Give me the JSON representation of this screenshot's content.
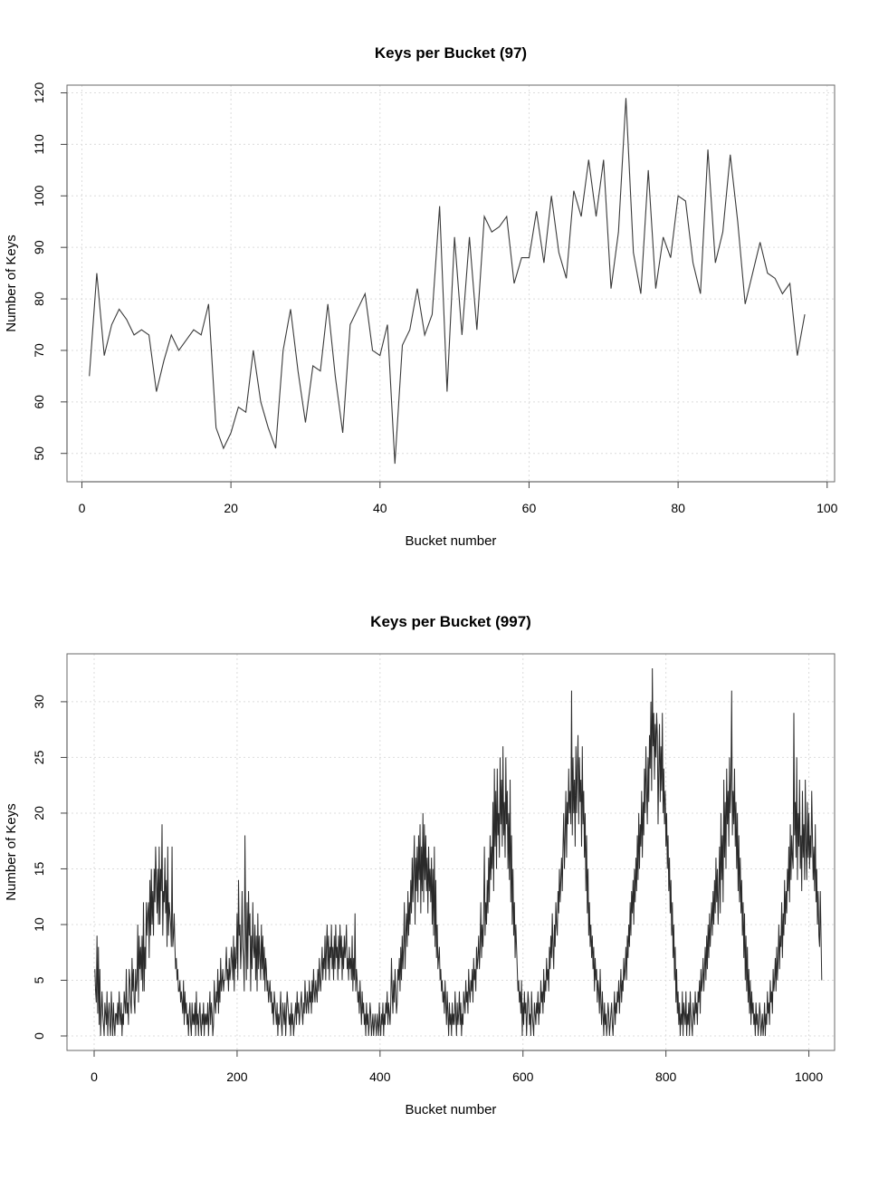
{
  "chart_data": [
    {
      "type": "line",
      "title": "Keys per Bucket (97)",
      "xlabel": "Bucket number",
      "ylabel": "Number of Keys",
      "xlim": [
        -2,
        101
      ],
      "ylim": [
        44.5,
        121.5
      ],
      "xticks": [
        0,
        20,
        40,
        60,
        80,
        100
      ],
      "yticks": [
        50,
        60,
        70,
        80,
        90,
        100,
        110,
        120
      ],
      "grid": true,
      "x_start": 1,
      "series": [
        {
          "name": "Keys",
          "values": [
            65,
            85,
            69,
            75,
            78,
            76,
            73,
            74,
            73,
            62,
            68,
            73,
            70,
            72,
            74,
            73,
            79,
            55,
            51,
            54,
            59,
            58,
            70,
            60,
            55,
            51,
            70,
            78,
            66,
            56,
            67,
            66,
            79,
            65,
            54,
            75,
            78,
            81,
            70,
            69,
            75,
            48,
            71,
            74,
            82,
            73,
            77,
            98,
            62,
            92,
            73,
            92,
            74,
            96,
            93,
            94,
            96,
            83,
            88,
            88,
            97,
            87,
            100,
            89,
            84,
            101,
            96,
            107,
            96,
            107,
            82,
            93,
            119,
            89,
            81,
            105,
            82,
            92,
            88,
            100,
            99,
            87,
            81,
            109,
            87,
            93,
            108,
            95,
            79,
            85,
            91,
            85,
            84,
            81,
            83,
            69,
            77
          ]
        }
      ]
    },
    {
      "type": "line",
      "title": "Keys per Bucket (997)",
      "xlabel": "Bucket number",
      "ylabel": "Number of Keys",
      "xlim": [
        -38,
        1036
      ],
      "ylim": [
        -1.3,
        34.3
      ],
      "xticks": [
        0,
        200,
        400,
        600,
        800,
        1000
      ],
      "yticks": [
        0,
        5,
        10,
        15,
        20,
        25,
        30
      ],
      "grid": true,
      "x_start": 1,
      "series": [
        {
          "name": "Keys",
          "values": [
            6,
            4,
            3,
            9,
            2,
            8,
            1,
            6,
            0,
            2,
            4,
            2,
            1,
            0,
            3,
            2,
            1,
            4,
            0,
            2,
            3,
            1,
            0,
            4,
            2,
            0,
            3,
            1,
            0,
            2,
            2,
            1,
            3,
            1,
            4,
            2,
            1,
            3,
            0,
            2,
            1,
            4,
            3,
            2,
            6,
            2,
            3,
            1,
            6,
            5,
            3,
            2,
            7,
            4,
            6,
            3,
            2,
            6,
            4,
            5,
            10,
            3,
            9,
            6,
            8,
            5,
            9,
            4,
            12,
            4,
            8,
            6,
            12,
            9,
            11,
            12,
            7,
            14,
            9,
            15,
            10,
            13,
            9,
            15,
            12,
            17,
            14,
            11,
            15,
            10,
            17,
            10,
            15,
            13,
            19,
            9,
            13,
            12,
            16,
            11,
            14,
            8,
            17,
            9,
            12,
            11,
            10,
            8,
            17,
            8,
            9,
            11,
            8,
            6,
            7,
            5,
            6,
            4,
            4,
            5,
            3,
            4,
            3,
            2,
            5,
            1,
            4,
            2,
            3,
            1,
            2,
            0,
            2,
            3,
            1,
            0,
            3,
            1,
            2,
            1,
            3,
            0,
            4,
            1,
            2,
            0,
            2,
            3,
            1,
            0,
            2,
            1,
            3,
            0,
            2,
            1,
            2,
            1,
            3,
            0,
            2,
            4,
            1,
            3,
            2,
            0,
            1,
            5,
            3,
            2,
            4,
            3,
            6,
            2,
            5,
            3,
            7,
            4,
            5,
            6,
            4,
            5,
            5,
            6,
            8,
            5,
            6,
            4,
            7,
            5,
            6,
            8,
            7,
            5,
            9,
            4,
            8,
            6,
            7,
            11,
            5,
            14,
            9,
            10,
            6,
            8,
            13,
            8,
            7,
            4,
            18,
            10,
            5,
            12,
            6,
            13,
            9,
            11,
            4,
            9,
            6,
            12,
            8,
            7,
            10,
            5,
            9,
            4,
            11,
            6,
            9,
            7,
            5,
            10,
            6,
            9,
            5,
            8,
            4,
            7,
            6,
            4,
            5,
            3,
            4,
            5,
            3,
            4,
            2,
            3,
            1,
            4,
            3,
            2,
            1,
            3,
            0,
            2,
            1,
            2,
            4,
            1,
            0,
            3,
            2,
            1,
            3,
            0,
            2,
            4,
            3,
            2,
            1,
            2,
            0,
            3,
            1,
            2,
            0,
            1,
            2,
            3,
            1,
            4,
            2,
            3,
            1,
            2,
            3,
            4,
            2,
            1,
            3,
            2,
            5,
            3,
            2,
            4,
            3,
            2,
            5,
            3,
            4,
            2,
            5,
            3,
            6,
            4,
            3,
            5,
            4,
            3,
            6,
            4,
            7,
            5,
            4,
            6,
            8,
            5,
            7,
            6,
            9,
            5,
            8,
            10,
            6,
            9,
            5,
            8,
            7,
            10,
            6,
            8,
            5,
            9,
            6,
            10,
            7,
            8,
            5,
            9,
            6,
            10,
            7,
            9,
            5,
            8,
            6,
            9,
            7,
            8,
            10,
            6,
            7,
            5,
            8,
            6,
            7,
            5,
            9,
            4,
            7,
            5,
            11,
            4,
            6,
            5,
            3,
            4,
            2,
            5,
            3,
            1,
            4,
            2,
            3,
            1,
            2,
            0,
            3,
            1,
            2,
            0,
            1,
            3,
            2,
            0,
            1,
            2,
            0,
            1,
            2,
            1,
            0,
            2,
            1,
            0,
            3,
            1,
            0,
            2,
            1,
            3,
            0,
            2,
            1,
            3,
            2,
            4,
            1,
            3,
            2,
            1,
            3,
            7,
            4,
            2,
            5,
            3,
            6,
            4,
            2,
            3,
            6,
            5,
            7,
            4,
            8,
            5,
            9,
            6,
            8,
            12,
            6,
            9,
            11,
            8,
            13,
            9,
            12,
            10,
            14,
            11,
            16,
            12,
            15,
            18,
            10,
            16,
            13,
            17,
            12,
            18,
            14,
            19,
            11,
            17,
            13,
            20,
            12,
            19,
            14,
            18,
            13,
            16,
            11,
            17,
            13,
            15,
            12,
            16,
            10,
            15,
            9,
            17,
            8,
            14,
            7,
            10,
            6,
            7,
            8,
            5,
            6,
            4,
            5,
            3,
            4,
            2,
            5,
            3,
            1,
            4,
            2,
            0,
            3,
            1,
            2,
            0,
            3,
            1,
            2,
            1,
            4,
            2,
            0,
            3,
            1,
            2,
            4,
            1,
            3,
            0,
            2,
            1,
            4,
            3,
            2,
            5,
            3,
            4,
            2,
            6,
            4,
            3,
            5,
            4,
            6,
            3,
            7,
            5,
            6,
            4,
            8,
            6,
            7,
            9,
            6,
            8,
            12,
            7,
            10,
            8,
            11,
            17,
            9,
            12,
            10,
            14,
            11,
            16,
            12,
            18,
            14,
            17,
            15,
            21,
            13,
            24,
            17,
            22,
            15,
            24,
            18,
            20,
            16,
            25,
            19,
            23,
            17,
            26,
            18,
            21,
            16,
            25,
            19,
            22,
            15,
            20,
            14,
            23,
            12,
            18,
            10,
            15,
            9,
            12,
            7,
            10,
            8,
            6,
            4,
            5,
            3,
            4,
            2,
            5,
            0,
            3,
            1,
            4,
            2,
            3,
            0,
            2,
            4,
            3,
            1,
            2,
            0,
            4,
            2,
            1,
            0,
            3,
            2,
            1,
            3,
            2,
            4,
            1,
            3,
            2,
            5,
            3,
            4,
            2,
            6,
            3,
            5,
            4,
            7,
            5,
            6,
            4,
            8,
            6,
            9,
            7,
            11,
            8,
            6,
            10,
            8,
            12,
            10,
            9,
            13,
            11,
            15,
            12,
            14,
            16,
            13,
            17,
            20,
            15,
            18,
            22,
            16,
            21,
            19,
            24,
            20,
            22,
            19,
            31,
            18,
            25,
            20,
            23,
            17,
            26,
            20,
            24,
            27,
            19,
            25,
            21,
            23,
            17,
            26,
            19,
            22,
            16,
            20,
            13,
            18,
            11,
            15,
            9,
            12,
            8,
            10,
            7,
            9,
            6,
            8,
            4,
            7,
            5,
            6,
            3,
            5,
            4,
            2,
            6,
            3,
            1,
            4,
            2,
            0,
            3,
            1,
            2,
            0,
            1,
            3,
            2,
            0,
            1,
            2,
            3,
            1,
            0,
            2,
            4,
            1,
            3,
            2,
            4,
            3,
            5,
            2,
            4,
            6,
            3,
            5,
            4,
            7,
            5,
            6,
            8,
            5,
            9,
            7,
            10,
            8,
            12,
            9,
            13,
            11,
            14,
            10,
            15,
            12,
            16,
            13,
            18,
            14,
            20,
            15,
            19,
            17,
            22,
            16,
            21,
            18,
            24,
            20,
            26,
            22,
            19,
            25,
            21,
            27,
            24,
            30,
            22,
            33,
            26,
            29,
            23,
            28,
            25,
            29,
            27,
            19,
            24,
            28,
            21,
            26,
            22,
            29,
            20,
            24,
            19,
            22,
            17,
            20,
            15,
            18,
            13,
            16,
            11,
            14,
            9,
            12,
            7,
            10,
            5,
            8,
            3,
            6,
            2,
            4,
            1,
            3,
            0,
            2,
            1,
            4,
            0,
            3,
            2,
            1,
            4,
            0,
            2,
            1,
            3,
            0,
            4,
            2,
            1,
            0,
            3,
            2,
            1,
            4,
            2,
            3,
            1,
            4,
            3,
            5,
            2,
            6,
            4,
            5,
            7,
            4,
            6,
            8,
            5,
            9,
            6,
            10,
            7,
            11,
            8,
            10,
            12,
            9,
            13,
            10,
            14,
            11,
            16,
            12,
            15,
            10,
            13,
            17,
            11,
            20,
            14,
            18,
            12,
            23,
            16,
            21,
            15,
            24,
            19,
            22,
            17,
            25,
            20,
            23,
            31,
            18,
            22,
            19,
            24,
            17,
            21,
            15,
            20,
            13,
            18,
            12,
            16,
            11,
            14,
            9,
            12,
            7,
            11,
            5,
            9,
            4,
            8,
            3,
            6,
            2,
            5,
            1,
            4,
            2,
            3,
            1,
            2,
            0,
            3,
            1,
            2,
            0,
            1,
            3,
            2,
            0,
            1,
            2,
            0,
            1,
            3,
            0,
            2,
            1,
            4,
            2,
            3,
            1,
            5,
            3,
            4,
            2,
            6,
            4,
            5,
            7,
            4,
            8,
            5,
            7,
            10,
            6,
            9,
            8,
            12,
            7,
            11,
            9,
            14,
            10,
            13,
            11,
            15,
            13,
            17,
            12,
            19,
            14,
            18,
            16,
            15,
            29,
            18,
            21,
            16,
            25,
            14,
            20,
            17,
            23,
            15,
            18,
            13,
            22,
            16,
            19,
            14,
            23,
            17,
            14,
            21,
            16,
            20,
            15,
            18,
            16,
            22,
            18,
            14,
            17,
            13,
            19,
            12,
            15,
            10,
            13,
            9,
            8,
            13,
            9,
            5
          ]
        }
      ]
    }
  ]
}
